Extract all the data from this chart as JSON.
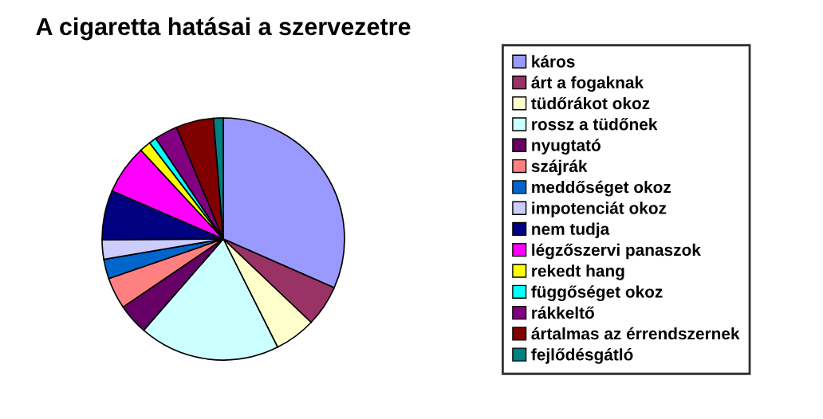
{
  "chart_data": {
    "type": "pie",
    "title": "A cigaretta hatásai a szervezetre",
    "categories": [
      "káros",
      "árt a fogaknak",
      "tüdőrákot okoz",
      "rossz a tüdőnek",
      "nyugtató",
      "szájrák",
      "meddőséget okoz",
      "impotenciát okoz",
      "nem tudja",
      "légzőszervi panaszok",
      "rekedt hang",
      "függőséget okoz",
      "rákkeltő",
      "ártalmas az érrendszernek",
      "fejlődésgátló"
    ],
    "values": [
      31.6,
      5.5,
      5.5,
      18.8,
      4.1,
      4.2,
      2.6,
      2.6,
      6.6,
      6.6,
      1.5,
      1.0,
      3.1,
      5.0,
      1.3
    ],
    "colors": [
      "#9999ff",
      "#993366",
      "#ffffcc",
      "#ccffff",
      "#660066",
      "#ff8080",
      "#0066cc",
      "#ccccff",
      "#000080",
      "#ff00ff",
      "#ffff00",
      "#00ffff",
      "#800080",
      "#800000",
      "#008080"
    ],
    "legend": "right"
  }
}
